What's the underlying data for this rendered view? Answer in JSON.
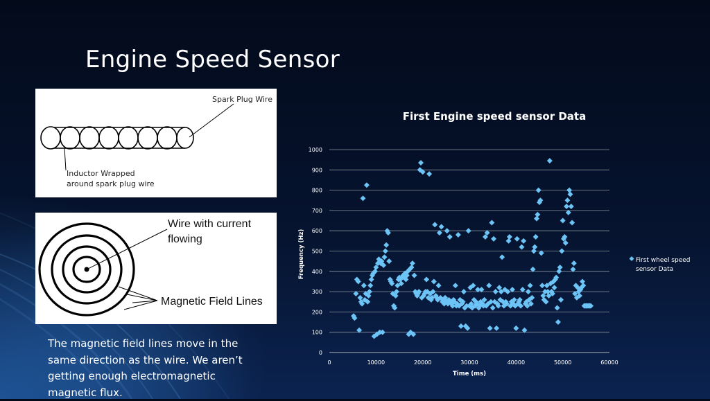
{
  "slide": {
    "title": "Engine Speed Sensor",
    "body": "The magnetic field lines move in the same direction as the wire. We aren’t getting enough electromagnetic magnetic flux."
  },
  "figure1": {
    "label_spark_plug_wire": "Spark Plug Wire",
    "label_inductor_line1": "Inductor Wrapped",
    "label_inductor_line2": "around spark plug wire"
  },
  "figure2": {
    "label_wire_line1": "Wire with current",
    "label_wire_line2": "flowing",
    "label_field_lines": "Magnetic Field Lines"
  },
  "colors": {
    "marker": "#6cc3f5",
    "gridline": "#ffffff",
    "text": "#ffffff"
  },
  "chart_data": {
    "type": "scatter",
    "title": "First Engine speed sensor Data",
    "xlabel": "Time (ms)",
    "ylabel": "Frequency (Hz)",
    "xlim": [
      0,
      60000
    ],
    "ylim": [
      0,
      1000
    ],
    "xticks": [
      0,
      10000,
      20000,
      30000,
      40000,
      50000,
      60000
    ],
    "yticks": [
      0,
      100,
      200,
      300,
      400,
      500,
      600,
      700,
      800,
      900,
      1000
    ],
    "grid": "horizontal",
    "legend": "right",
    "series": [
      {
        "name": "First wheel speed sensor Data",
        "marker": "diamond",
        "points": [
          [
            5200,
            180
          ],
          [
            5400,
            170
          ],
          [
            5700,
            290
          ],
          [
            5900,
            360
          ],
          [
            6200,
            350
          ],
          [
            6400,
            110
          ],
          [
            6600,
            270
          ],
          [
            6800,
            250
          ],
          [
            7000,
            240
          ],
          [
            7200,
            760
          ],
          [
            7400,
            330
          ],
          [
            7600,
            260
          ],
          [
            7800,
            290
          ],
          [
            8000,
            825
          ],
          [
            8200,
            250
          ],
          [
            8400,
            280
          ],
          [
            8600,
            300
          ],
          [
            8800,
            330
          ],
          [
            9000,
            360
          ],
          [
            9200,
            380
          ],
          [
            9400,
            390
          ],
          [
            9600,
            80
          ],
          [
            9800,
            400
          ],
          [
            10000,
            420
          ],
          [
            10200,
            90
          ],
          [
            10400,
            440
          ],
          [
            10600,
            460
          ],
          [
            10800,
            100
          ],
          [
            11000,
            440
          ],
          [
            11200,
            450
          ],
          [
            11400,
            100
          ],
          [
            11600,
            430
          ],
          [
            11800,
            470
          ],
          [
            12000,
            500
          ],
          [
            12200,
            530
          ],
          [
            12400,
            600
          ],
          [
            12600,
            590
          ],
          [
            12800,
            450
          ],
          [
            13000,
            360
          ],
          [
            13200,
            350
          ],
          [
            13400,
            340
          ],
          [
            13600,
            290
          ],
          [
            13800,
            230
          ],
          [
            14000,
            220
          ],
          [
            14200,
            280
          ],
          [
            14400,
            300
          ],
          [
            14600,
            330
          ],
          [
            14800,
            360
          ],
          [
            15000,
            370
          ],
          [
            15200,
            360
          ],
          [
            15400,
            340
          ],
          [
            15600,
            370
          ],
          [
            15800,
            380
          ],
          [
            16000,
            370
          ],
          [
            16200,
            390
          ],
          [
            16400,
            360
          ],
          [
            16600,
            380
          ],
          [
            16800,
            400
          ],
          [
            17000,
            90
          ],
          [
            17200,
            410
          ],
          [
            17400,
            100
          ],
          [
            17600,
            420
          ],
          [
            17800,
            440
          ],
          [
            18000,
            90
          ],
          [
            18200,
            380
          ],
          [
            18400,
            300
          ],
          [
            18600,
            290
          ],
          [
            18800,
            280
          ],
          [
            19000,
            290
          ],
          [
            19200,
            300
          ],
          [
            19400,
            900
          ],
          [
            19600,
            935
          ],
          [
            19800,
            270
          ],
          [
            20000,
            890
          ],
          [
            20200,
            280
          ],
          [
            20400,
            290
          ],
          [
            20600,
            300
          ],
          [
            20800,
            360
          ],
          [
            21000,
            300
          ],
          [
            21200,
            270
          ],
          [
            21400,
            880
          ],
          [
            21600,
            290
          ],
          [
            21800,
            260
          ],
          [
            22000,
            270
          ],
          [
            22200,
            300
          ],
          [
            22400,
            350
          ],
          [
            22600,
            630
          ],
          [
            22800,
            280
          ],
          [
            23000,
            270
          ],
          [
            23200,
            260
          ],
          [
            23400,
            330
          ],
          [
            23600,
            590
          ],
          [
            23800,
            270
          ],
          [
            24000,
            620
          ],
          [
            24200,
            250
          ],
          [
            24400,
            260
          ],
          [
            24600,
            240
          ],
          [
            24800,
            270
          ],
          [
            25000,
            250
          ],
          [
            25200,
            600
          ],
          [
            25400,
            240
          ],
          [
            25600,
            260
          ],
          [
            25800,
            570
          ],
          [
            26000,
            250
          ],
          [
            26200,
            240
          ],
          [
            26400,
            230
          ],
          [
            26600,
            260
          ],
          [
            26800,
            250
          ],
          [
            27000,
            330
          ],
          [
            27200,
            230
          ],
          [
            27400,
            240
          ],
          [
            27600,
            580
          ],
          [
            27800,
            230
          ],
          [
            28000,
            260
          ],
          [
            28200,
            130
          ],
          [
            28400,
            240
          ],
          [
            28600,
            250
          ],
          [
            28800,
            300
          ],
          [
            29000,
            220
          ],
          [
            29200,
            130
          ],
          [
            29400,
            230
          ],
          [
            29600,
            120
          ],
          [
            29800,
            600
          ],
          [
            30000,
            230
          ],
          [
            30200,
            320
          ],
          [
            30400,
            240
          ],
          [
            30600,
            220
          ],
          [
            30800,
            330
          ],
          [
            31000,
            260
          ],
          [
            31200,
            230
          ],
          [
            31400,
            250
          ],
          [
            31600,
            240
          ],
          [
            31800,
            310
          ],
          [
            32000,
            220
          ],
          [
            32200,
            230
          ],
          [
            32400,
            250
          ],
          [
            32600,
            310
          ],
          [
            32800,
            240
          ],
          [
            33000,
            230
          ],
          [
            33200,
            260
          ],
          [
            33400,
            570
          ],
          [
            33600,
            230
          ],
          [
            33800,
            590
          ],
          [
            34000,
            240
          ],
          [
            34200,
            330
          ],
          [
            34400,
            120
          ],
          [
            34600,
            250
          ],
          [
            34800,
            640
          ],
          [
            35000,
            220
          ],
          [
            35200,
            560
          ],
          [
            35400,
            250
          ],
          [
            35600,
            300
          ],
          [
            35800,
            120
          ],
          [
            36000,
            240
          ],
          [
            36200,
            230
          ],
          [
            36400,
            320
          ],
          [
            36600,
            260
          ],
          [
            36800,
            300
          ],
          [
            37000,
            470
          ],
          [
            37200,
            250
          ],
          [
            37400,
            230
          ],
          [
            37600,
            310
          ],
          [
            37800,
            250
          ],
          [
            38000,
            240
          ],
          [
            38200,
            300
          ],
          [
            38400,
            550
          ],
          [
            38600,
            570
          ],
          [
            38800,
            230
          ],
          [
            39000,
            250
          ],
          [
            39200,
            310
          ],
          [
            39400,
            240
          ],
          [
            39600,
            260
          ],
          [
            39800,
            230
          ],
          [
            40000,
            120
          ],
          [
            40200,
            560
          ],
          [
            40400,
            240
          ],
          [
            40600,
            250
          ],
          [
            40800,
            260
          ],
          [
            41000,
            230
          ],
          [
            41200,
            520
          ],
          [
            41400,
            310
          ],
          [
            41600,
            550
          ],
          [
            41800,
            110
          ],
          [
            42000,
            240
          ],
          [
            42200,
            250
          ],
          [
            42400,
            230
          ],
          [
            42600,
            300
          ],
          [
            42800,
            260
          ],
          [
            43000,
            330
          ],
          [
            43200,
            240
          ],
          [
            43400,
            270
          ],
          [
            43600,
            410
          ],
          [
            43800,
            500
          ],
          [
            44000,
            520
          ],
          [
            44200,
            570
          ],
          [
            44400,
            660
          ],
          [
            44600,
            680
          ],
          [
            44800,
            800
          ],
          [
            45000,
            740
          ],
          [
            45200,
            750
          ],
          [
            45400,
            490
          ],
          [
            45600,
            330
          ],
          [
            45800,
            280
          ],
          [
            46000,
            260
          ],
          [
            46200,
            300
          ],
          [
            46400,
            250
          ],
          [
            46600,
            330
          ],
          [
            46800,
            300
          ],
          [
            47000,
            280
          ],
          [
            47200,
            945
          ],
          [
            47400,
            340
          ],
          [
            47600,
            300
          ],
          [
            47800,
            290
          ],
          [
            48000,
            350
          ],
          [
            48200,
            320
          ],
          [
            48400,
            360
          ],
          [
            48600,
            370
          ],
          [
            48800,
            220
          ],
          [
            49000,
            150
          ],
          [
            49200,
            400
          ],
          [
            49400,
            420
          ],
          [
            49600,
            260
          ],
          [
            49800,
            500
          ],
          [
            50000,
            650
          ],
          [
            50200,
            560
          ],
          [
            50400,
            570
          ],
          [
            50600,
            540
          ],
          [
            50800,
            720
          ],
          [
            51000,
            750
          ],
          [
            51200,
            690
          ],
          [
            51400,
            800
          ],
          [
            51600,
            780
          ],
          [
            51800,
            720
          ],
          [
            52000,
            640
          ],
          [
            52200,
            410
          ],
          [
            52400,
            440
          ],
          [
            52600,
            290
          ],
          [
            52800,
            330
          ],
          [
            53000,
            270
          ],
          [
            53200,
            320
          ],
          [
            53400,
            300
          ],
          [
            53600,
            280
          ],
          [
            53800,
            310
          ],
          [
            54000,
            320
          ],
          [
            54200,
            350
          ],
          [
            54400,
            330
          ],
          [
            54600,
            230
          ],
          [
            54800,
            230
          ],
          [
            55000,
            230
          ],
          [
            55200,
            230
          ],
          [
            55400,
            230
          ],
          [
            55600,
            230
          ],
          [
            55800,
            230
          ],
          [
            56000,
            230
          ]
        ]
      }
    ]
  }
}
